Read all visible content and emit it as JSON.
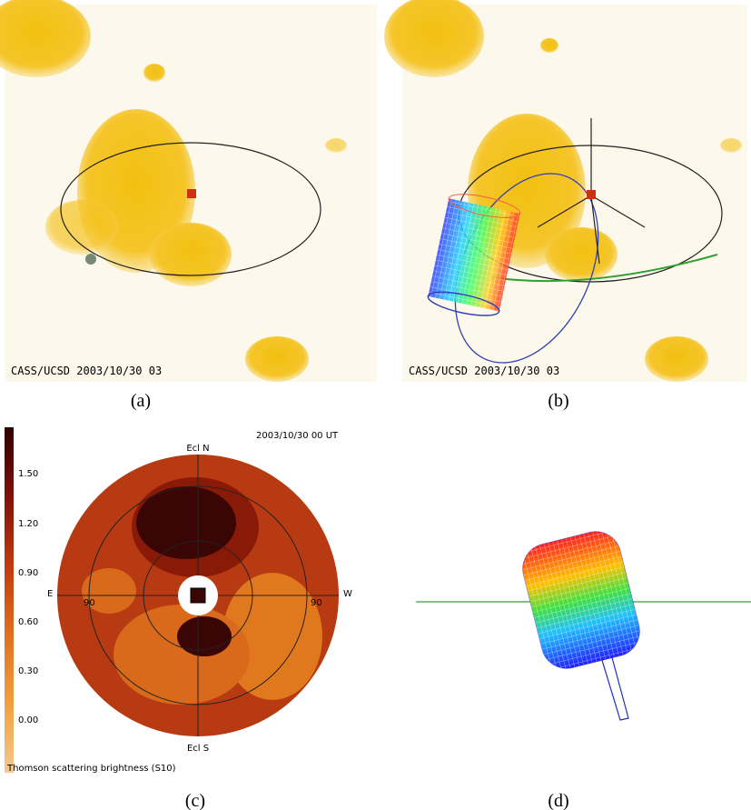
{
  "panels": [
    {
      "label": "(a)",
      "stamp": "CASS/UCSD 2003/10/30 03"
    },
    {
      "label": "(b)",
      "stamp": "CASS/UCSD 2003/10/30 03"
    },
    {
      "label": "(c)",
      "timestamp": "2003/10/30 00 UT",
      "north": "Ecl N",
      "south": "Ecl S",
      "east": "E",
      "west": "W",
      "lon_left": "90",
      "lon_right": "90",
      "colorbar_ticks": [
        "1.50",
        "1.20",
        "0.90",
        "0.60",
        "0.30",
        "0.00"
      ],
      "colorbar_title": "Thomson scattering brightness (S10)"
    },
    {
      "label": "(d)"
    }
  ]
}
